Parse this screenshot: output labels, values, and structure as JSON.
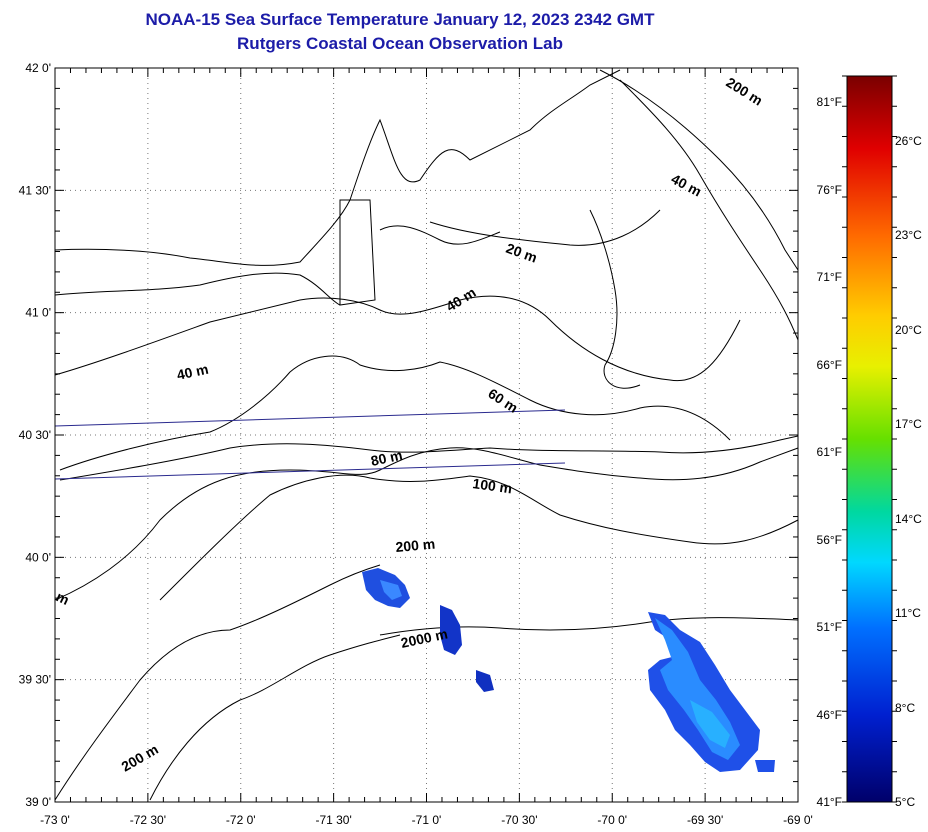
{
  "header": {
    "title": "NOAA-15 Sea Surface Temperature January 12, 2023 2342 GMT",
    "subtitle": "Rutgers Coastal Ocean Observation Lab"
  },
  "map": {
    "lon_range": [
      -73.0,
      -69.0
    ],
    "lat_range": [
      39.0,
      42.0
    ],
    "lon_ticks": [
      {
        "value": -73.0,
        "label": "-73 0'"
      },
      {
        "value": -72.5,
        "label": "-72 30'"
      },
      {
        "value": -72.0,
        "label": "-72 0'"
      },
      {
        "value": -71.5,
        "label": "-71 30'"
      },
      {
        "value": -71.0,
        "label": "-71 0'"
      },
      {
        "value": -70.5,
        "label": "-70 30'"
      },
      {
        "value": -70.0,
        "label": "-70 0'"
      },
      {
        "value": -69.5,
        "label": "-69 30'"
      },
      {
        "value": -69.0,
        "label": "-69 0'"
      }
    ],
    "lat_ticks": [
      {
        "value": 42.0,
        "label": "42 0'"
      },
      {
        "value": 41.5,
        "label": "41 30'"
      },
      {
        "value": 41.0,
        "label": "41 0'"
      },
      {
        "value": 40.5,
        "label": "40 30'"
      },
      {
        "value": 40.0,
        "label": "40 0'"
      },
      {
        "value": 39.5,
        "label": "39 30'"
      },
      {
        "value": 39.0,
        "label": "39 0'"
      }
    ],
    "grid": "dotted",
    "depth_labels": [
      "200 m",
      "40 m",
      "20 m",
      "40 m",
      "40 m",
      "60 m",
      "80 m",
      "100 m",
      "200 m",
      "2000 m",
      "200 m",
      "m"
    ]
  },
  "colorbar": {
    "celsius_labels": [
      "26°C",
      "23°C",
      "20°C",
      "17°C",
      "14°C",
      "11°C",
      "8°C",
      "5°C"
    ],
    "fahrenheit_labels": [
      "81°F",
      "76°F",
      "71°F",
      "66°F",
      "61°F",
      "56°F",
      "51°F",
      "46°F",
      "41°F"
    ],
    "colors": [
      "#7a0000",
      "#e00000",
      "#ff6a00",
      "#ffcc00",
      "#e8f000",
      "#66e000",
      "#00d8a0",
      "#00d8ff",
      "#0070ff",
      "#0020d0",
      "#00006a"
    ]
  }
}
